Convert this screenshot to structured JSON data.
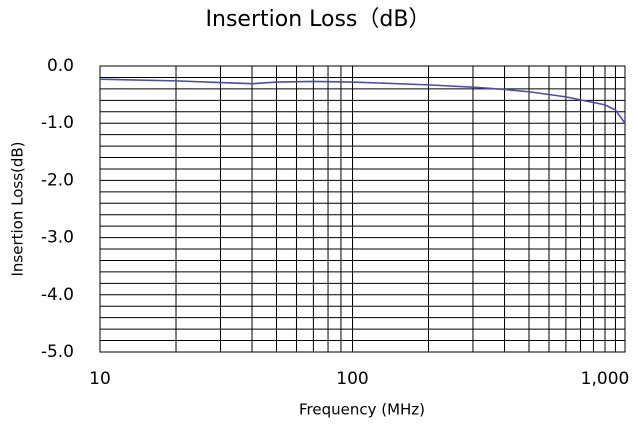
{
  "chart_data": {
    "type": "line",
    "title": "Insertion Loss（dB）",
    "x_label": "Frequency (MHz)",
    "y_label": "Insertion Loss(dB)",
    "x_scale": "log",
    "grid": true,
    "xlim": [
      10,
      1200
    ],
    "ylim": [
      -5,
      0
    ],
    "xticks": [
      10,
      100,
      {
        "value": 1000,
        "label": "1,000"
      }
    ],
    "x_minor_ticks": [
      20,
      30,
      40,
      50,
      60,
      70,
      80,
      90,
      200,
      300,
      400,
      500,
      600,
      700,
      800,
      900,
      1100
    ],
    "yticks": [
      {
        "value": 0,
        "label": "0.0"
      },
      {
        "value": -1,
        "label": "-1.0"
      },
      {
        "value": -2,
        "label": "-2.0"
      },
      {
        "value": -3,
        "label": "-3.0"
      },
      {
        "value": -4,
        "label": "-4.0"
      },
      {
        "value": -5,
        "label": "-5.0"
      }
    ],
    "y_minor_ticks": [
      -0.2,
      -0.4,
      -0.6,
      -0.8,
      -1.2,
      -1.4,
      -1.6,
      -1.8,
      -2.2,
      -2.4,
      -2.6,
      -2.8,
      -3.2,
      -3.4,
      -3.6,
      -3.8,
      -4.2,
      -4.4,
      -4.6,
      -4.8
    ],
    "x": [
      10,
      20,
      30,
      40,
      50,
      70,
      100,
      200,
      300,
      400,
      500,
      700,
      1000,
      1100,
      1200
    ],
    "series": [
      {
        "name": "Insertion Loss",
        "color": "#4b4bb0",
        "values": [
          -0.23,
          -0.26,
          -0.29,
          -0.31,
          -0.28,
          -0.27,
          -0.28,
          -0.33,
          -0.37,
          -0.41,
          -0.45,
          -0.54,
          -0.68,
          -0.77,
          -1.0
        ]
      }
    ]
  }
}
